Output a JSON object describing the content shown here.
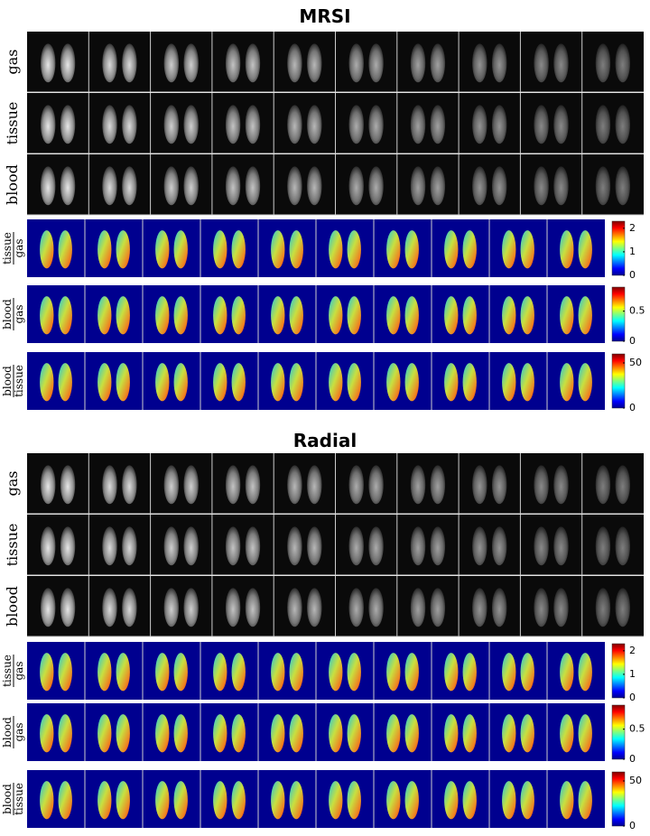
{
  "sections": [
    {
      "title": "MRSI",
      "rows": [
        {
          "label": "gas"
        },
        {
          "label": "tissue"
        },
        {
          "label": "blood"
        }
      ],
      "ratio_rows": [
        {
          "numerator": "tissue",
          "denominator": "gas",
          "colorbar": {
            "lim": [
              0,
              2.3
            ],
            "ticks": [
              0,
              1,
              2
            ]
          }
        },
        {
          "numerator": "blood",
          "denominator": "gas",
          "colorbar": {
            "lim": [
              0,
              0.9
            ],
            "ticks": [
              0,
              0.5
            ]
          }
        },
        {
          "numerator": "blood",
          "denominator": "tissue",
          "colorbar": {
            "lim": [
              0,
              60
            ],
            "ticks": [
              0,
              50
            ]
          }
        }
      ]
    },
    {
      "title": "Radial",
      "rows": [
        {
          "label": "gas"
        },
        {
          "label": "tissue"
        },
        {
          "label": "blood"
        }
      ],
      "ratio_rows": [
        {
          "numerator": "tissue",
          "denominator": "gas",
          "colorbar": {
            "lim": [
              0,
              2.3
            ],
            "ticks": [
              0,
              1,
              2
            ]
          }
        },
        {
          "numerator": "blood",
          "denominator": "gas",
          "colorbar": {
            "lim": [
              0,
              0.9
            ],
            "ticks": [
              0,
              0.5
            ]
          }
        },
        {
          "numerator": "blood",
          "denominator": "tissue",
          "colorbar": {
            "lim": [
              0,
              60
            ],
            "ticks": [
              0,
              50
            ]
          }
        }
      ]
    }
  ]
}
